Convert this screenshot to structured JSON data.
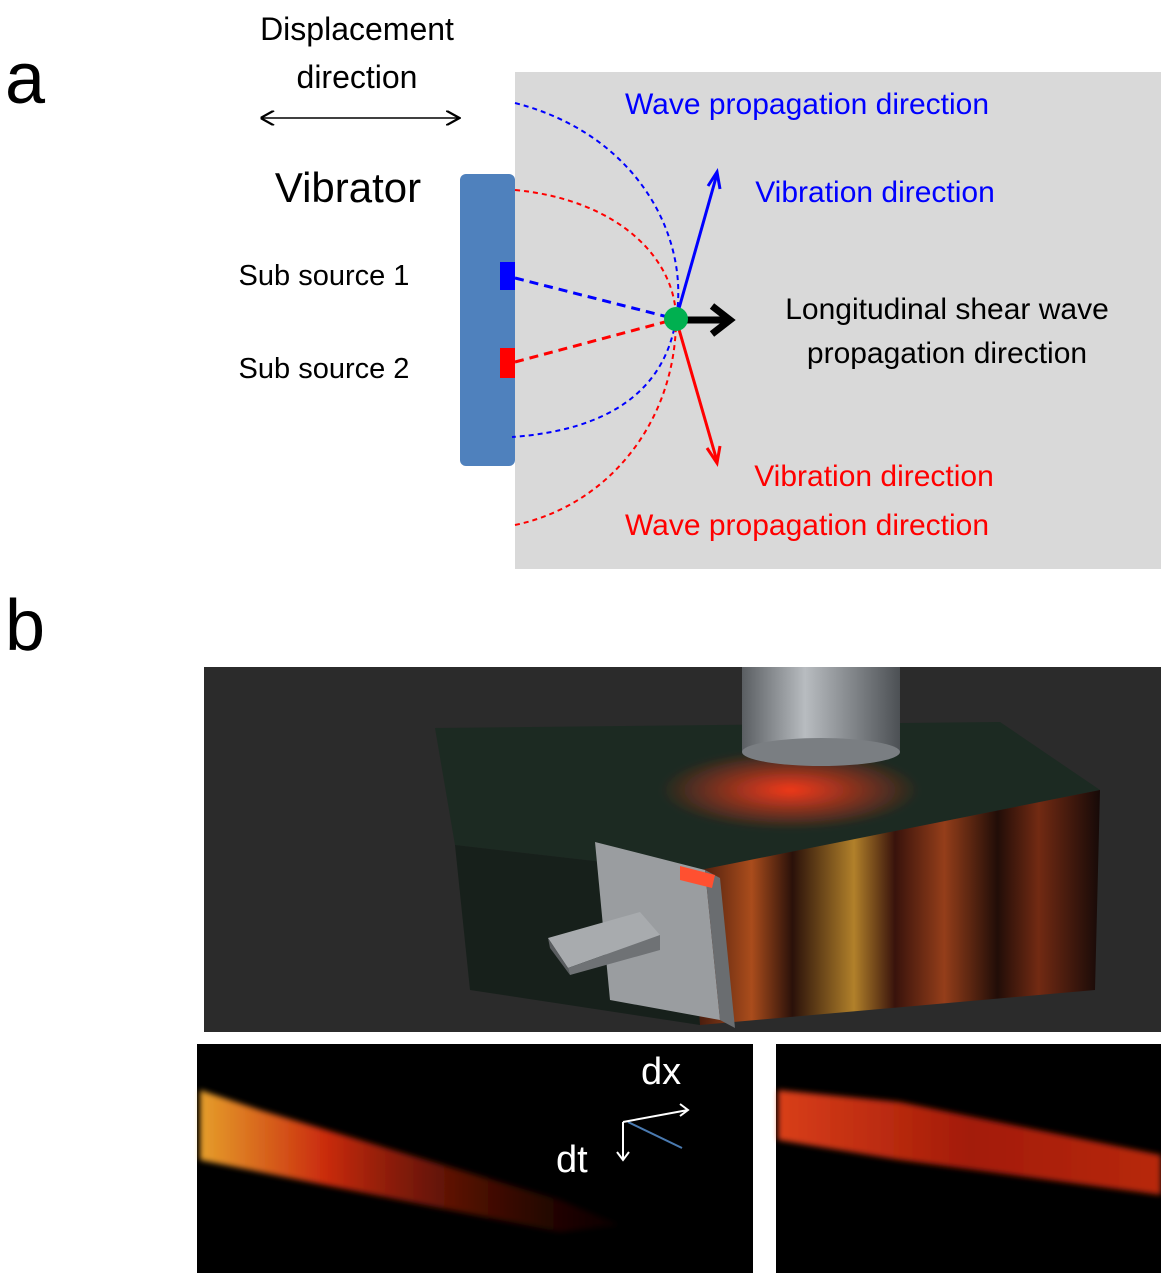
{
  "panel_a": {
    "label": "a",
    "displacement_direction": [
      "Displacement",
      "direction"
    ],
    "vibrator": "Vibrator",
    "sub_source_1": "Sub source 1",
    "sub_source_2": "Sub source 2",
    "blue_wave_propagation": "Wave propagation direction",
    "blue_vibration": "Vibration direction",
    "longitudinal": [
      "Longitudinal shear wave",
      "propagation direction"
    ],
    "red_vibration": "Vibration direction",
    "red_wave_propagation": "Wave propagation direction"
  },
  "panel_b": {
    "label": "b",
    "dx": "dx",
    "dt": "dt"
  }
}
